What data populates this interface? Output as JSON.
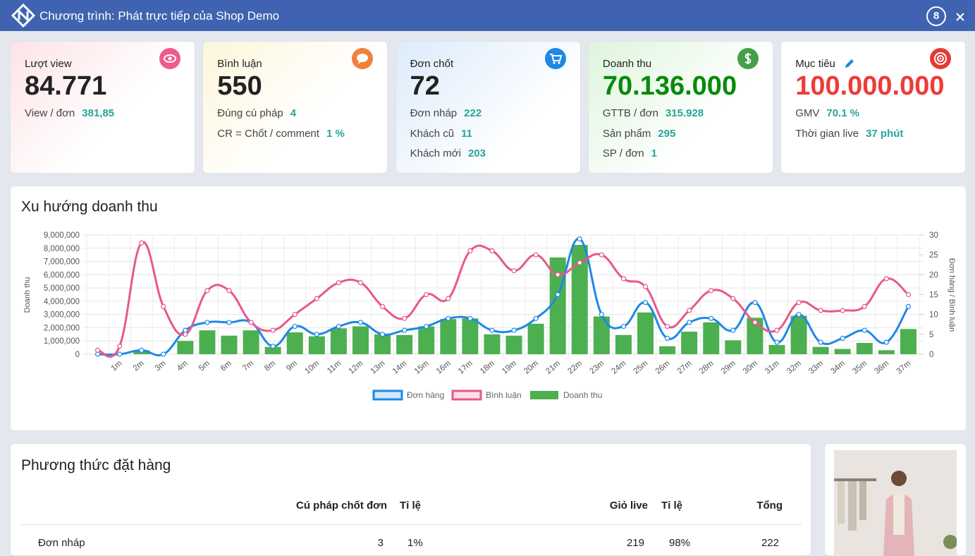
{
  "header": {
    "title": "Chương trình: Phát trực tiếp của Shop Demo",
    "badge": "8"
  },
  "cards": [
    {
      "label": "Lượt view",
      "value": "84.771",
      "color": "#ef5b8e",
      "value_color": "#222222",
      "stats": [
        {
          "label": "View / đơn",
          "value": "381,85"
        }
      ]
    },
    {
      "label": "Bình luận",
      "value": "550",
      "color": "#f0803c",
      "value_color": "#222222",
      "stats": [
        {
          "label": "Đúng cú pháp",
          "value": "4"
        },
        {
          "label": "CR = Chốt / comment",
          "value": "1 %"
        }
      ]
    },
    {
      "label": "Đơn chốt",
      "value": "72",
      "color": "#1e88e5",
      "value_color": "#222222",
      "stats": [
        {
          "label": "Đơn nháp",
          "value": "222"
        },
        {
          "label": "Khách cũ",
          "value": "11"
        },
        {
          "label": "Khách mới",
          "value": "203"
        }
      ]
    },
    {
      "label": "Doanh thu",
      "value": "70.136.000",
      "color": "#43a047",
      "value_color": "#0a8a0a",
      "stats": [
        {
          "label": "GTTB / đơn",
          "value": "315.928"
        },
        {
          "label": "Sản phẩm",
          "value": "295"
        },
        {
          "label": "SP / đơn",
          "value": "1"
        }
      ]
    },
    {
      "label": "Mục tiêu",
      "value": "100.000.000",
      "color": "#e53935",
      "value_color": "#ef3b36",
      "stats": [
        {
          "label": "GMV",
          "value": "70.1 %"
        },
        {
          "label": "Thời gian live",
          "value": "37 phút"
        }
      ]
    }
  ],
  "chart_data": {
    "type": "bar",
    "title": "Xu hướng doanh thu",
    "ylabel": "Doanh thu",
    "y2label": "Đơn hàng / Bình luận",
    "grid": true,
    "legend": "bottom",
    "categories": [
      null,
      "1m",
      "2m",
      "3m",
      "4m",
      "5m",
      "6m",
      "7m",
      "8m",
      "9m",
      "10m",
      "11m",
      "12m",
      "13m",
      "14m",
      "15m",
      "16m",
      "17m",
      "18m",
      "19m",
      "20m",
      "21m",
      "22m",
      "23m",
      "24m",
      "25m",
      "26m",
      "27m",
      "28m",
      "29m",
      "30m",
      "31m",
      "32m",
      "33m",
      "34m",
      "35m",
      "36m",
      "37m"
    ],
    "ylim": [
      0,
      9000000
    ],
    "yticks": [
      0,
      {
        "value": 1000000,
        "label": "1,000,000"
      },
      {
        "value": 2000000,
        "label": "2,000,000"
      },
      {
        "value": 3000000,
        "label": "3,000,000"
      },
      {
        "value": 4000000,
        "label": "4,000,000"
      },
      {
        "value": 5000000,
        "label": "5,000,000"
      },
      {
        "value": 6000000,
        "label": "6,000,000"
      },
      {
        "value": 7000000,
        "label": "7,000,000"
      },
      {
        "value": 8000000,
        "label": "8,000,000"
      },
      {
        "value": 9000000,
        "label": "9,000,000"
      }
    ],
    "y2lim": [
      0,
      30
    ],
    "y2ticks": [
      0,
      5,
      10,
      15,
      20,
      25,
      30
    ],
    "series": [
      {
        "name": "Đơn hàng",
        "type": "line",
        "axis": "y2",
        "color": "#1e88e5",
        "values": [
          0,
          0,
          1,
          0,
          6,
          8,
          8,
          8,
          2,
          7,
          5,
          7,
          8,
          5,
          6,
          7,
          9,
          9,
          6,
          6,
          9,
          15,
          29,
          10,
          7,
          13,
          4,
          8,
          9,
          6,
          13,
          3,
          10,
          3,
          4,
          6,
          3,
          12
        ]
      },
      {
        "name": "Bình luận",
        "type": "line",
        "axis": "y2",
        "color": "#e8588a",
        "values": [
          1,
          2,
          28,
          12,
          5,
          16,
          16,
          8,
          6,
          10,
          14,
          18,
          18,
          12,
          9,
          15,
          14,
          26,
          26,
          21,
          25,
          20,
          23,
          25,
          19,
          17,
          7,
          11,
          16,
          14,
          8,
          6,
          13,
          11,
          11,
          12,
          19,
          15
        ]
      },
      {
        "name": "Doanh thu",
        "type": "bar",
        "color": "#4caf50",
        "values": [
          0,
          0,
          300000,
          0,
          1000000,
          1800000,
          1400000,
          1800000,
          550000,
          1650000,
          1350000,
          1950000,
          2100000,
          1500000,
          1450000,
          2100000,
          2650000,
          2700000,
          1500000,
          1400000,
          2300000,
          7300000,
          8250000,
          2850000,
          1450000,
          3150000,
          600000,
          1700000,
          2400000,
          1050000,
          2750000,
          700000,
          2900000,
          550000,
          400000,
          850000,
          300000,
          1900000
        ]
      }
    ]
  },
  "table": {
    "title": "Phương thức đặt hàng",
    "headers": [
      "Cú pháp chốt đơn",
      "Tỉ lệ",
      "Giỏ live",
      "Tỉ lệ",
      "Tổng"
    ],
    "rows": [
      [
        "Đơn nháp",
        "3",
        "1%",
        "219",
        "98%",
        "222"
      ]
    ]
  }
}
